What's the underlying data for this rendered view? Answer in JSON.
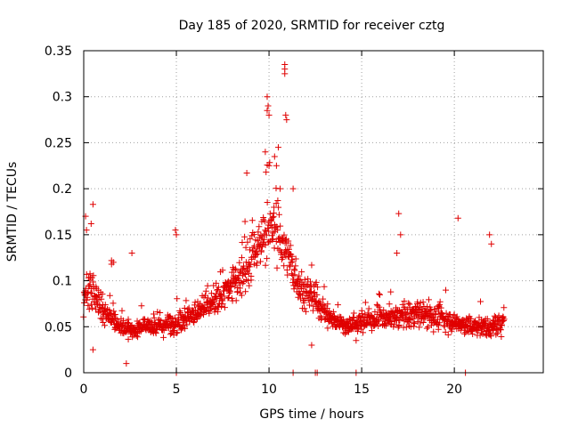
{
  "chart_data": {
    "type": "scatter",
    "title": "Day 185 of 2020, SRMTID for receiver cztg",
    "xlabel": "GPS time / hours",
    "ylabel": "SRMTID / TECUs",
    "xlim": [
      0,
      24.8
    ],
    "ylim": [
      0,
      0.35
    ],
    "x_ticks": [
      0,
      5,
      10,
      15,
      20
    ],
    "x_tick_labels": [
      "0",
      "5",
      "10",
      "15",
      "20"
    ],
    "y_ticks": [
      0,
      0.05,
      0.1,
      0.15,
      0.2,
      0.25,
      0.3,
      0.35
    ],
    "y_tick_labels": [
      "0",
      "0.05",
      "0.1",
      "0.15",
      "0.2",
      "0.25",
      "0.3",
      "0.35"
    ],
    "grid": true,
    "marker": "plus",
    "color": "#e00000",
    "series": [
      {
        "name": "SRMTID",
        "trend": [
          {
            "x": 0.0,
            "y": 0.085
          },
          {
            "x": 0.5,
            "y": 0.09
          },
          {
            "x": 1.0,
            "y": 0.065
          },
          {
            "x": 1.5,
            "y": 0.06
          },
          {
            "x": 2.0,
            "y": 0.05
          },
          {
            "x": 2.5,
            "y": 0.045
          },
          {
            "x": 3.0,
            "y": 0.05
          },
          {
            "x": 4.0,
            "y": 0.05
          },
          {
            "x": 5.0,
            "y": 0.055
          },
          {
            "x": 6.0,
            "y": 0.065
          },
          {
            "x": 7.0,
            "y": 0.075
          },
          {
            "x": 8.0,
            "y": 0.095
          },
          {
            "x": 9.0,
            "y": 0.12
          },
          {
            "x": 9.5,
            "y": 0.14
          },
          {
            "x": 10.0,
            "y": 0.16
          },
          {
            "x": 10.5,
            "y": 0.15
          },
          {
            "x": 11.0,
            "y": 0.13
          },
          {
            "x": 11.5,
            "y": 0.1
          },
          {
            "x": 12.0,
            "y": 0.085
          },
          {
            "x": 12.5,
            "y": 0.08
          },
          {
            "x": 13.0,
            "y": 0.065
          },
          {
            "x": 14.0,
            "y": 0.05
          },
          {
            "x": 15.0,
            "y": 0.055
          },
          {
            "x": 16.0,
            "y": 0.06
          },
          {
            "x": 17.0,
            "y": 0.06
          },
          {
            "x": 18.0,
            "y": 0.065
          },
          {
            "x": 19.0,
            "y": 0.06
          },
          {
            "x": 20.0,
            "y": 0.055
          },
          {
            "x": 21.0,
            "y": 0.05
          },
          {
            "x": 22.0,
            "y": 0.05
          },
          {
            "x": 22.7,
            "y": 0.055
          }
        ],
        "x_start": 0.0,
        "x_end": 22.7,
        "point_count": 1400,
        "notable_points": [
          {
            "x": 10.85,
            "y": 0.335
          },
          {
            "x": 10.85,
            "y": 0.33
          },
          {
            "x": 10.85,
            "y": 0.325
          },
          {
            "x": 9.9,
            "y": 0.3
          },
          {
            "x": 9.95,
            "y": 0.29
          },
          {
            "x": 9.9,
            "y": 0.285
          },
          {
            "x": 10.0,
            "y": 0.28
          },
          {
            "x": 10.9,
            "y": 0.28
          },
          {
            "x": 10.95,
            "y": 0.275
          },
          {
            "x": 10.5,
            "y": 0.245
          },
          {
            "x": 10.3,
            "y": 0.235
          },
          {
            "x": 9.8,
            "y": 0.24
          },
          {
            "x": 10.0,
            "y": 0.225
          },
          {
            "x": 10.4,
            "y": 0.225
          },
          {
            "x": 10.6,
            "y": 0.2
          },
          {
            "x": 8.8,
            "y": 0.217
          },
          {
            "x": 11.3,
            "y": 0.2
          },
          {
            "x": 0.5,
            "y": 0.183
          },
          {
            "x": 0.15,
            "y": 0.155
          },
          {
            "x": 0.1,
            "y": 0.17
          },
          {
            "x": 0.4,
            "y": 0.162
          },
          {
            "x": 17.0,
            "y": 0.173
          },
          {
            "x": 20.2,
            "y": 0.168
          },
          {
            "x": 17.1,
            "y": 0.15
          },
          {
            "x": 21.9,
            "y": 0.15
          },
          {
            "x": 22.0,
            "y": 0.14
          },
          {
            "x": 16.9,
            "y": 0.13
          },
          {
            "x": 4.95,
            "y": 0.155
          },
          {
            "x": 5.0,
            "y": 0.15
          },
          {
            "x": 2.6,
            "y": 0.13
          },
          {
            "x": 1.5,
            "y": 0.122
          },
          {
            "x": 1.6,
            "y": 0.12
          },
          {
            "x": 1.5,
            "y": 0.118
          },
          {
            "x": 0.5,
            "y": 0.025
          },
          {
            "x": 2.3,
            "y": 0.01
          },
          {
            "x": 12.3,
            "y": 0.03
          },
          {
            "x": 14.7,
            "y": 0.035
          },
          {
            "x": 5.0,
            "y": 0.0
          },
          {
            "x": 11.3,
            "y": 0.0
          },
          {
            "x": 12.5,
            "y": 0.0
          },
          {
            "x": 12.6,
            "y": 0.0
          },
          {
            "x": 14.7,
            "y": 0.0
          },
          {
            "x": 20.6,
            "y": 0.0
          }
        ]
      }
    ]
  }
}
